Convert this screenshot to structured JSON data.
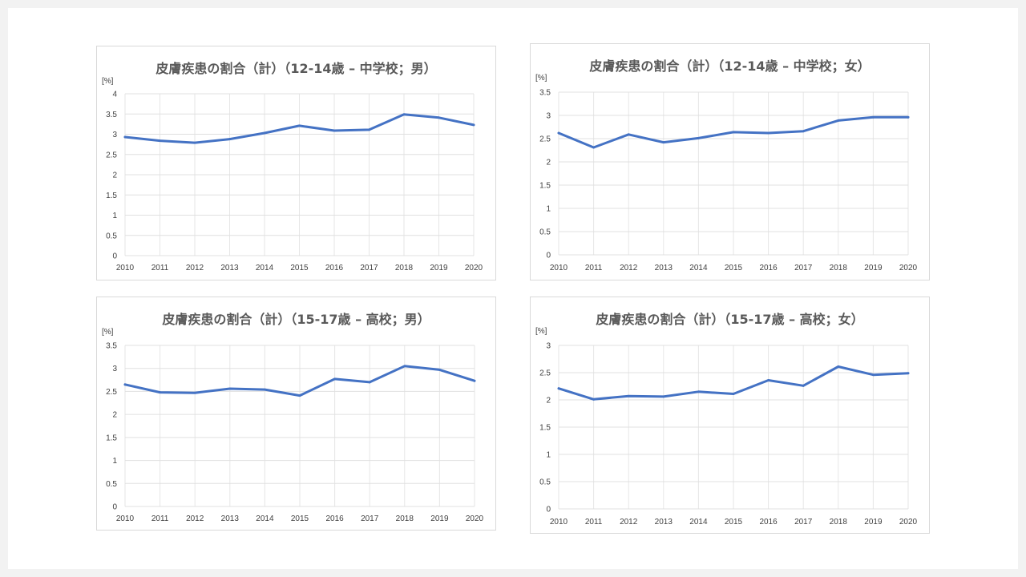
{
  "chart_data": [
    {
      "type": "line",
      "title": "皮膚疾患の割合（計）（12-14歳 – 中学校；男）",
      "ylabel": "[%]",
      "xlabel": "",
      "x": [
        "2010",
        "2011",
        "2012",
        "2013",
        "2014",
        "2015",
        "2016",
        "2017",
        "2018",
        "2019",
        "2020"
      ],
      "series": [
        {
          "values": [
            2.93,
            2.84,
            2.79,
            2.88,
            3.03,
            3.21,
            3.09,
            3.11,
            3.49,
            3.41,
            3.23
          ]
        }
      ],
      "ylim": [
        0,
        4
      ],
      "yticks": [
        "0",
        "0.5",
        "1",
        "1.5",
        "2",
        "2.5",
        "3",
        "3.5",
        "4"
      ],
      "grid": true,
      "color": "#4472c4"
    },
    {
      "type": "line",
      "title": "皮膚疾患の割合（計）（12-14歳 – 中学校；女）",
      "ylabel": "[%]",
      "xlabel": "",
      "x": [
        "2010",
        "2011",
        "2012",
        "2013",
        "2014",
        "2015",
        "2016",
        "2017",
        "2018",
        "2019",
        "2020"
      ],
      "series": [
        {
          "values": [
            2.62,
            2.31,
            2.59,
            2.42,
            2.51,
            2.64,
            2.62,
            2.66,
            2.89,
            2.96,
            2.96
          ]
        }
      ],
      "ylim": [
        0,
        3.5
      ],
      "yticks": [
        "0",
        "0.5",
        "1",
        "1.5",
        "2",
        "2.5",
        "3",
        "3.5"
      ],
      "grid": true,
      "color": "#4472c4"
    },
    {
      "type": "line",
      "title": "皮膚疾患の割合（計）（15-17歳 – 高校；男）",
      "ylabel": "[%]",
      "xlabel": "",
      "x": [
        "2010",
        "2011",
        "2012",
        "2013",
        "2014",
        "2015",
        "2016",
        "2017",
        "2018",
        "2019",
        "2020"
      ],
      "series": [
        {
          "values": [
            2.65,
            2.48,
            2.47,
            2.56,
            2.54,
            2.41,
            2.77,
            2.7,
            3.05,
            2.97,
            2.73
          ]
        }
      ],
      "ylim": [
        0,
        3.5
      ],
      "yticks": [
        "0",
        "0.5",
        "1",
        "1.5",
        "2",
        "2.5",
        "3",
        "3.5"
      ],
      "grid": true,
      "color": "#4472c4"
    },
    {
      "type": "line",
      "title": "皮膚疾患の割合（計）（15-17歳 – 高校；女）",
      "ylabel": "[%]",
      "xlabel": "",
      "x": [
        "2010",
        "2011",
        "2012",
        "2013",
        "2014",
        "2015",
        "2016",
        "2017",
        "2018",
        "2019",
        "2020"
      ],
      "series": [
        {
          "values": [
            2.21,
            2.01,
            2.07,
            2.06,
            2.15,
            2.11,
            2.36,
            2.26,
            2.61,
            2.46,
            2.49
          ]
        }
      ],
      "ylim": [
        0,
        3
      ],
      "yticks": [
        "0",
        "0.5",
        "1",
        "1.5",
        "2",
        "2.5",
        "3"
      ],
      "grid": true,
      "color": "#4472c4"
    }
  ]
}
